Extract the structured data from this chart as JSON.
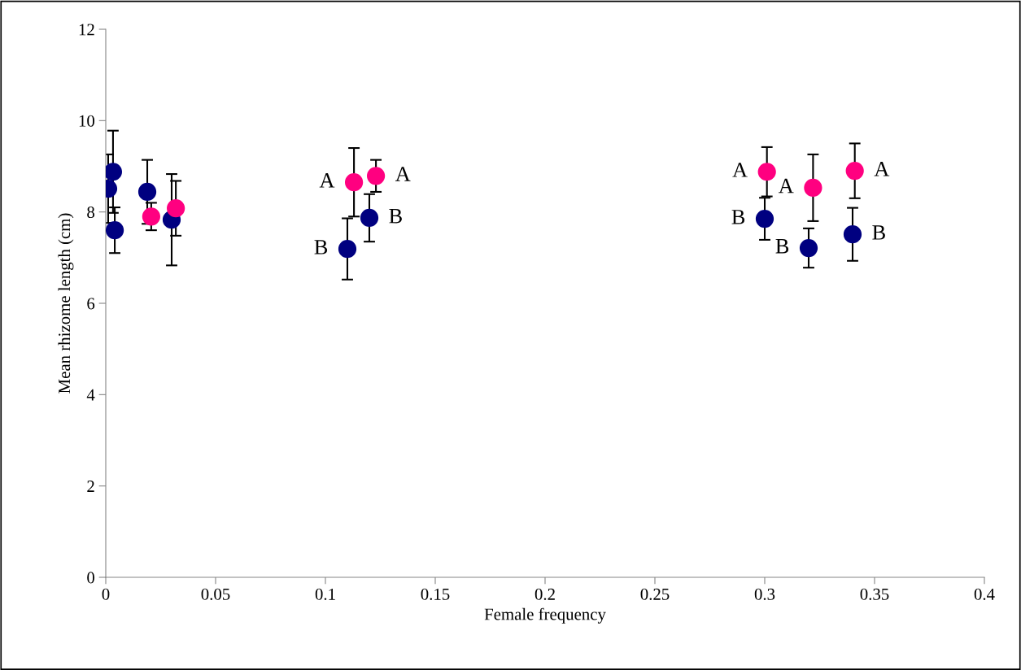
{
  "chart_data": {
    "type": "scatter",
    "xlabel": "Female frequency",
    "ylabel": "Mean rhizome length (cm)",
    "xlim": [
      0,
      0.4
    ],
    "xticks": [
      0,
      0.05,
      0.1,
      0.15,
      0.2,
      0.25,
      0.3,
      0.35,
      0.4
    ],
    "ylim": [
      0,
      12
    ],
    "yticks": [
      0,
      2,
      4,
      6,
      8,
      10,
      12
    ],
    "grid": false,
    "legend": false,
    "marker": "circle",
    "series": [
      {
        "color": "#000080",
        "x": [
          0.0011,
          0.0033,
          0.0041,
          0.0189,
          0.03,
          0.11,
          0.12,
          0.3,
          0.32,
          0.34
        ],
        "values": [
          8.51,
          8.88,
          7.6,
          8.44,
          7.83,
          7.19,
          7.87,
          7.85,
          7.21,
          7.51
        ],
        "errors": [
          0.75,
          0.9,
          0.5,
          0.7,
          1.0,
          0.67,
          0.52,
          0.46,
          0.43,
          0.58
        ]
      },
      {
        "color": "#ff0080",
        "x": [
          0.0207,
          0.0319,
          0.113,
          0.123,
          0.301,
          0.322,
          0.341
        ],
        "values": [
          7.9,
          8.08,
          8.65,
          8.79,
          8.88,
          8.53,
          8.9
        ],
        "errors": [
          0.3,
          0.6,
          0.75,
          0.35,
          0.54,
          0.73,
          0.6
        ]
      }
    ],
    "annotations": [
      {
        "text": "A",
        "x": 0.113,
        "y": 8.65
      },
      {
        "text": "A",
        "x": 0.123,
        "y": 8.79
      },
      {
        "text": "B",
        "x": 0.12,
        "y": 7.87
      },
      {
        "text": "B",
        "x": 0.11,
        "y": 7.19
      },
      {
        "text": "A",
        "x": 0.301,
        "y": 8.88
      },
      {
        "text": "A",
        "x": 0.322,
        "y": 8.53
      },
      {
        "text": "A",
        "x": 0.341,
        "y": 8.9
      },
      {
        "text": "B",
        "x": 0.3,
        "y": 7.85
      },
      {
        "text": "B",
        "x": 0.32,
        "y": 7.21
      },
      {
        "text": "B",
        "x": 0.34,
        "y": 7.51
      }
    ]
  }
}
